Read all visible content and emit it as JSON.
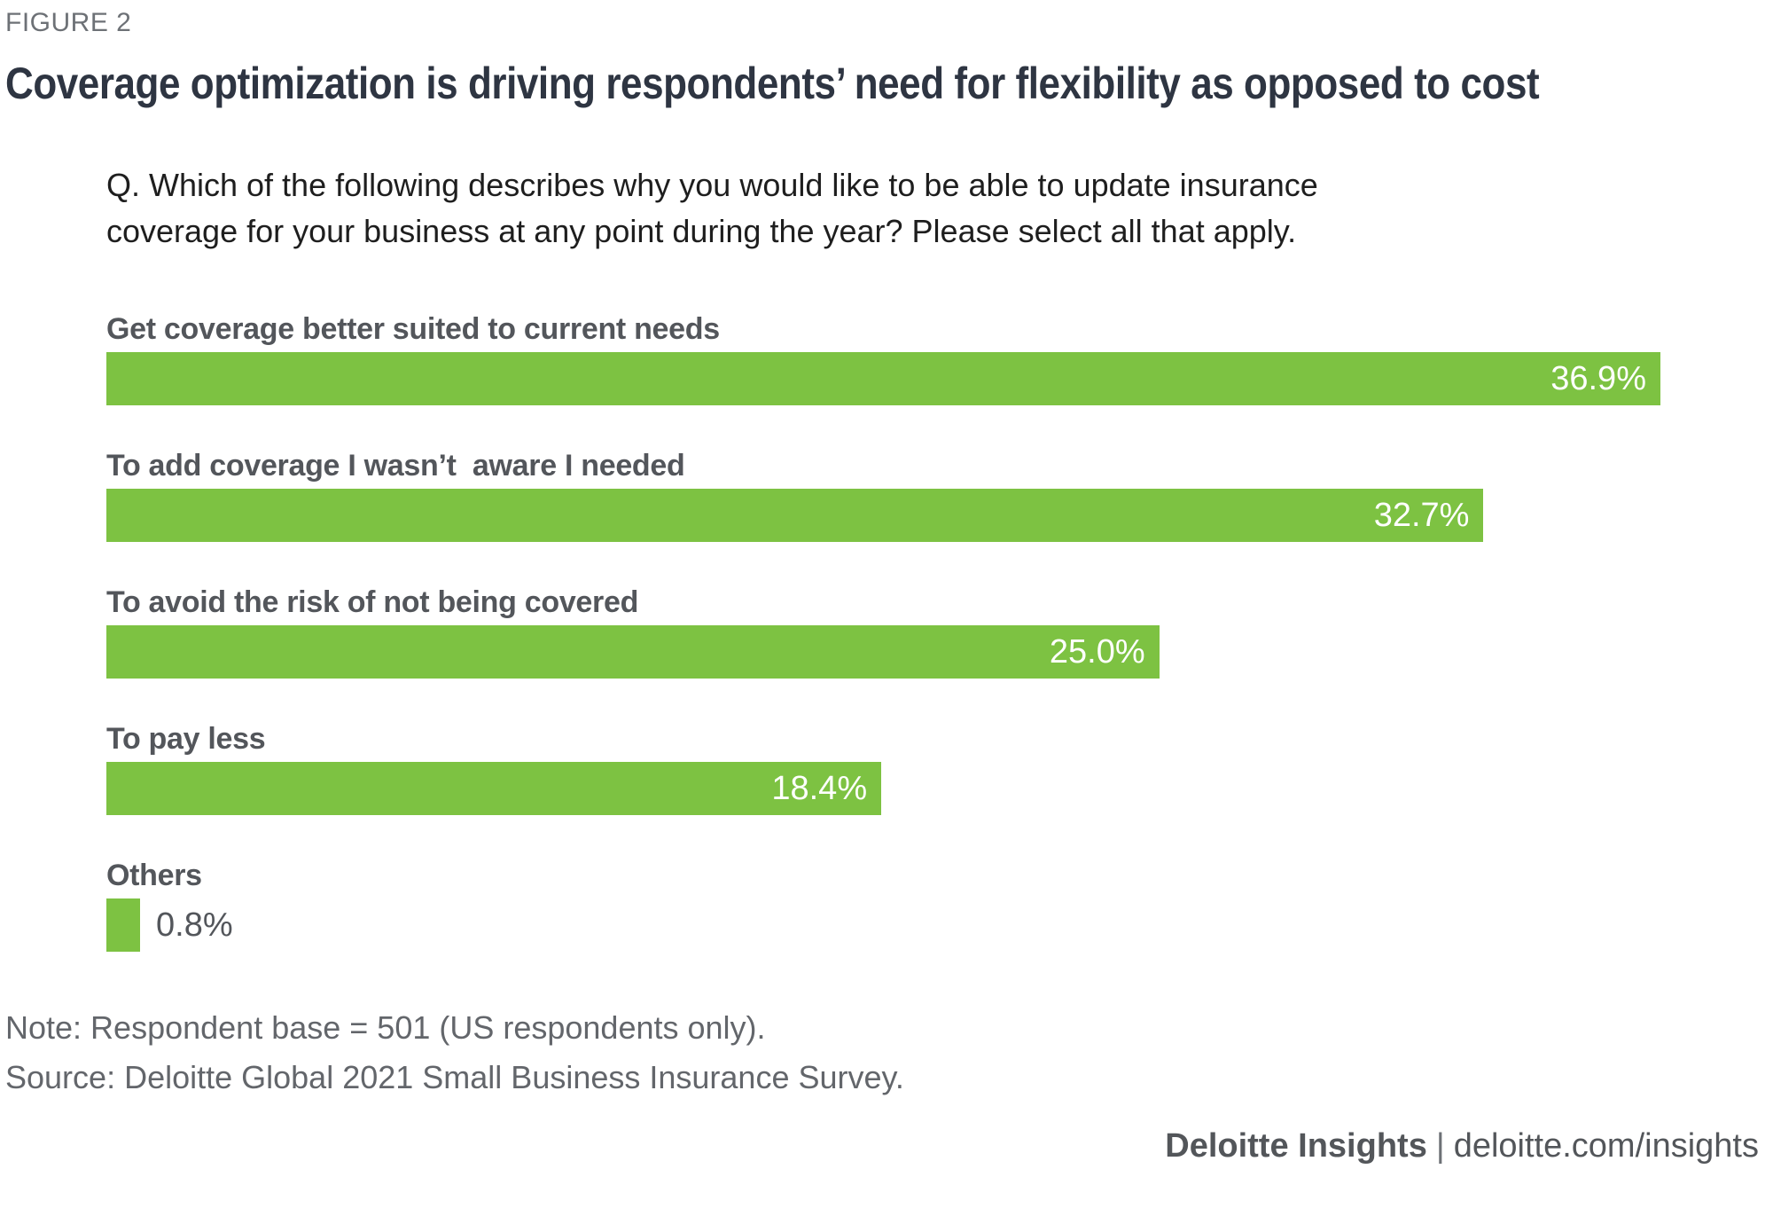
{
  "figure_label": "FIGURE 2",
  "title": "Coverage optimization is driving respondents’ need for flexibility as opposed to cost",
  "question": "Q. Which of the following describes why you would like to be able to update insurance\ncoverage for your business at any point during the year? Please select all that apply.",
  "chart_data": {
    "type": "bar",
    "orientation": "horizontal",
    "title": "Coverage optimization is driving respondents’ need for flexibility as opposed to cost",
    "categories": [
      "Get coverage better suited to current needs",
      "To add coverage I wasn’t  aware I needed",
      "To avoid the risk of not being covered",
      "To pay less",
      "Others"
    ],
    "values": [
      36.9,
      32.7,
      25.0,
      18.4,
      0.8
    ],
    "value_labels": [
      "36.9%",
      "32.7%",
      "25.0%",
      "18.4%",
      "0.8%"
    ],
    "value_label_position": [
      "inside",
      "inside",
      "inside",
      "inside",
      "outside"
    ],
    "xlabel": "",
    "ylabel": "",
    "xlim": [
      0,
      39.3
    ],
    "grid": false,
    "legend": false,
    "bar_color": "#7DC242",
    "inside_label_color": "#FFFFFF",
    "outside_label_color": "#53565B"
  },
  "note": "Note: Respondent base = 501 (US respondents only).",
  "source": "Source: Deloitte Global 2021 Small Business Insurance Survey.",
  "footer": {
    "brand": "Deloitte Insights",
    "separator": "|",
    "link": "deloitte.com/insights"
  }
}
